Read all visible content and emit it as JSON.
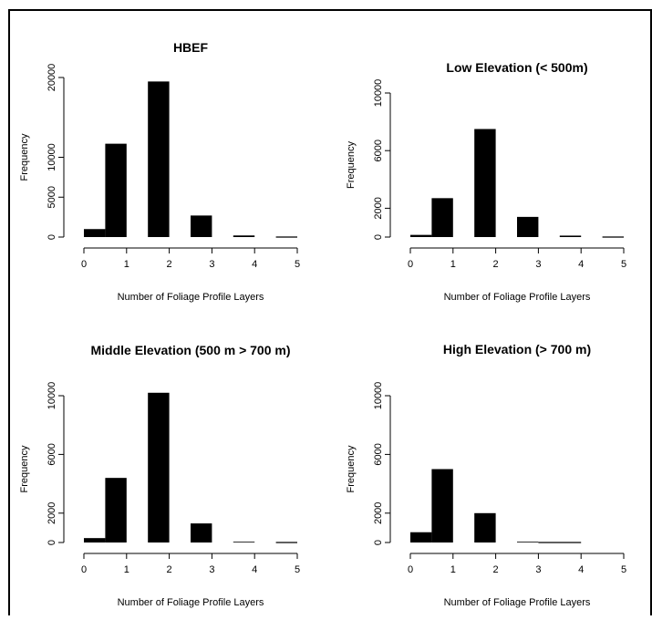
{
  "chart_data": [
    {
      "type": "bar",
      "title": "HBEF",
      "xlabel": "Number of Foliage Profile Layers",
      "ylabel": "Frequency",
      "xlim": [
        0,
        5
      ],
      "ylim": [
        0,
        20000
      ],
      "xticks": [
        0,
        1,
        2,
        3,
        4,
        5
      ],
      "yticks": [
        0,
        5000,
        10000,
        20000
      ],
      "bars": [
        {
          "x0": 0.0,
          "x1": 0.5,
          "value": 1000
        },
        {
          "x0": 0.5,
          "x1": 1.0,
          "value": 11700
        },
        {
          "x0": 1.5,
          "x1": 2.0,
          "value": 19500
        },
        {
          "x0": 2.5,
          "x1": 3.0,
          "value": 2700
        },
        {
          "x0": 3.5,
          "x1": 4.0,
          "value": 200
        },
        {
          "x0": 4.5,
          "x1": 5.0,
          "value": 0
        }
      ]
    },
    {
      "type": "bar",
      "title": "Low Elevation (< 500m)",
      "xlabel": "Number of Foliage Profile Layers",
      "ylabel": "Frequency",
      "xlim": [
        0,
        5
      ],
      "ylim": [
        0,
        10000
      ],
      "xticks": [
        0,
        1,
        2,
        3,
        4,
        5
      ],
      "yticks": [
        0,
        2000,
        6000,
        10000
      ],
      "bars": [
        {
          "x0": 0.0,
          "x1": 0.5,
          "value": 150
        },
        {
          "x0": 0.5,
          "x1": 1.0,
          "value": 2700
        },
        {
          "x0": 1.5,
          "x1": 2.0,
          "value": 7500
        },
        {
          "x0": 2.5,
          "x1": 3.0,
          "value": 1400
        },
        {
          "x0": 3.5,
          "x1": 4.0,
          "value": 100
        },
        {
          "x0": 4.5,
          "x1": 5.0,
          "value": 0
        }
      ]
    },
    {
      "type": "bar",
      "title": "Middle Elevation (500 m > 700 m)",
      "xlabel": "Number of Foliage Profile Layers",
      "ylabel": "Frequency",
      "xlim": [
        0,
        5
      ],
      "ylim": [
        0,
        10000
      ],
      "xticks": [
        0,
        1,
        2,
        3,
        4,
        5
      ],
      "yticks": [
        0,
        2000,
        6000,
        10000
      ],
      "bars": [
        {
          "x0": 0.0,
          "x1": 0.5,
          "value": 300
        },
        {
          "x0": 0.5,
          "x1": 1.0,
          "value": 4400
        },
        {
          "x0": 1.5,
          "x1": 2.0,
          "value": 10200
        },
        {
          "x0": 2.5,
          "x1": 3.0,
          "value": 1300
        },
        {
          "x0": 3.5,
          "x1": 4.0,
          "value": 50
        },
        {
          "x0": 4.5,
          "x1": 5.0,
          "value": 0
        }
      ]
    },
    {
      "type": "bar",
      "title": "High Elevation (> 700 m)",
      "xlabel": "Number of Foliage Profile Layers",
      "ylabel": "Frequency",
      "xlim": [
        0,
        5
      ],
      "ylim": [
        0,
        10000
      ],
      "xticks": [
        0,
        1,
        2,
        3,
        4,
        5
      ],
      "yticks": [
        0,
        2000,
        6000,
        10000
      ],
      "bars": [
        {
          "x0": 0.0,
          "x1": 0.5,
          "value": 700
        },
        {
          "x0": 0.5,
          "x1": 1.0,
          "value": 5000
        },
        {
          "x0": 1.5,
          "x1": 2.0,
          "value": 2000
        },
        {
          "x0": 2.5,
          "x1": 3.0,
          "value": 50
        },
        {
          "x0": 3.0,
          "x1": 4.0,
          "value": 0
        }
      ]
    }
  ]
}
